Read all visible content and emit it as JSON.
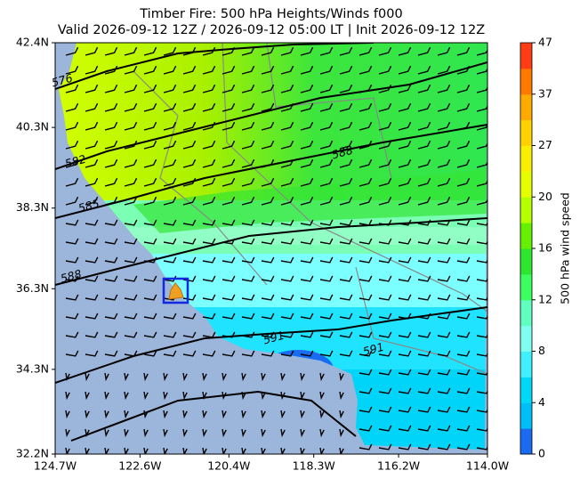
{
  "chart_data": {
    "type": "map",
    "title": "Timber Fire: 500 hPa Heights/Winds f000",
    "subtitle": "Valid 2026-09-12 12Z / 2026-09-12 05:00 LT | Init 2026-09-12 12Z",
    "xlim": [
      -124.7,
      -114.0
    ],
    "ylim": [
      32.2,
      42.4
    ],
    "xticks": [
      {
        "value": -124.7,
        "label": "124.7W"
      },
      {
        "value": -122.6,
        "label": "122.6W"
      },
      {
        "value": -120.4,
        "label": "120.4W"
      },
      {
        "value": -118.3,
        "label": "118.3W"
      },
      {
        "value": -116.2,
        "label": "116.2W"
      },
      {
        "value": -114.0,
        "label": "114.0W"
      }
    ],
    "yticks": [
      {
        "value": 32.2,
        "label": "32.2N"
      },
      {
        "value": 34.3,
        "label": "34.3N"
      },
      {
        "value": 36.3,
        "label": "36.3N"
      },
      {
        "value": 38.3,
        "label": "38.3N"
      },
      {
        "value": 40.3,
        "label": "40.3N"
      },
      {
        "value": 42.4,
        "label": "42.4N"
      }
    ],
    "contour_labels": [
      576,
      582,
      585,
      588,
      588,
      591,
      591
    ],
    "colorbar": {
      "label": "500 hPa wind speed",
      "ticks": [
        0,
        4,
        8,
        12,
        16,
        20,
        27,
        37,
        47
      ],
      "colors": [
        "#1a6af2",
        "#00bff8",
        "#00d8f8",
        "#40f0ff",
        "#80fff0",
        "#60ffc0",
        "#3cff60",
        "#2ee62e",
        "#64f000",
        "#b4ff00",
        "#e6ff00",
        "#f8f000",
        "#ffd200",
        "#ffaa00",
        "#ff7800",
        "#ff3c14"
      ]
    }
  }
}
